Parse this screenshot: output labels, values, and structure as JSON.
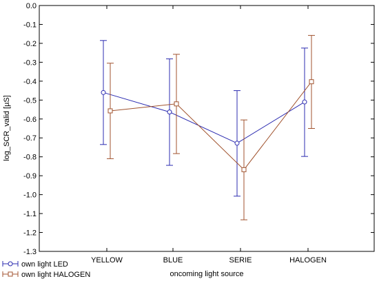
{
  "chart_data": {
    "type": "line",
    "xlabel": "oncoming light source",
    "ylabel": "log_SCR_valid [µS]",
    "categories": [
      "YELLOW",
      "BLUE",
      "SERIE",
      "HALOGEN"
    ],
    "ylim": [
      -1.3,
      0.0
    ],
    "yticks": [
      "0.0",
      "-0.1",
      "-0.2",
      "-0.3",
      "-0.4",
      "-0.5",
      "-0.6",
      "-0.7",
      "-0.8",
      "-0.9",
      "-1.0",
      "-1.1",
      "-1.2",
      "-1.3"
    ],
    "grid": false,
    "legend_position": "bottom-left",
    "error_bars": true,
    "series": [
      {
        "name": "own light LED",
        "color": "#2b2bb0",
        "marker": "circle",
        "values": [
          -0.46,
          -0.563,
          -0.728,
          -0.51
        ],
        "upper": [
          -0.185,
          -0.282,
          -0.45,
          -0.225
        ],
        "lower": [
          -0.735,
          -0.845,
          -1.008,
          -0.798
        ]
      },
      {
        "name": "own light HALOGEN",
        "color": "#a0522d",
        "marker": "square",
        "values": [
          -0.557,
          -0.52,
          -0.868,
          -0.403
        ],
        "upper": [
          -0.305,
          -0.258,
          -0.605,
          -0.158
        ],
        "lower": [
          -0.81,
          -0.783,
          -1.133,
          -0.65
        ]
      }
    ]
  }
}
